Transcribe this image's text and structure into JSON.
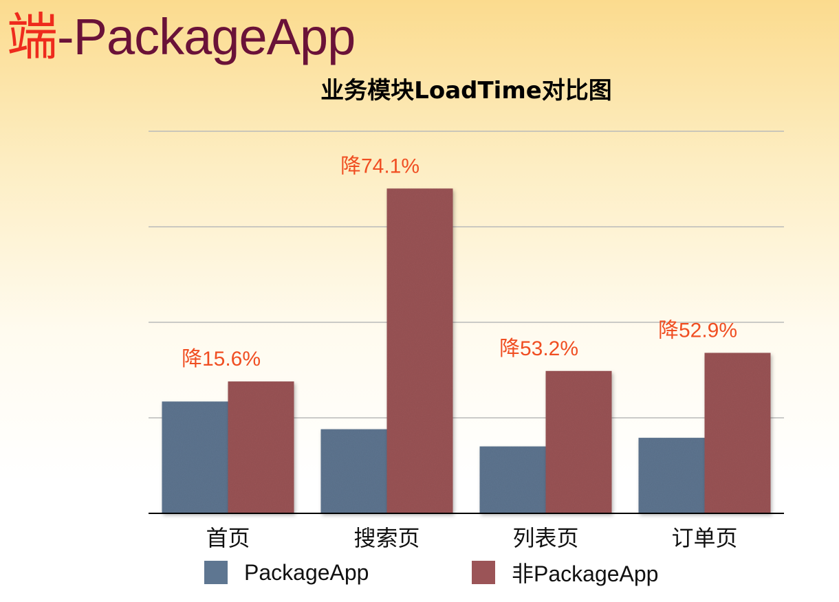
{
  "slide": {
    "title_prefix": "端",
    "title_rest": "-PackageApp"
  },
  "colors": {
    "series_1": "#5e7691",
    "series_2": "#9b5457",
    "annotation": "#f04e22",
    "title_prefix": "#ee2b1d",
    "title_rest": "#6a1238",
    "gridline": "#b9b9b9",
    "axis": "#000000"
  },
  "chart_data": {
    "type": "bar",
    "title": "业务模块LoadTime对比图",
    "categories": [
      "首页",
      "搜索页",
      "列表页",
      "订单页"
    ],
    "series": [
      {
        "name": "PackageApp",
        "values": [
          1.17,
          0.88,
          0.7,
          0.79
        ]
      },
      {
        "name": "非PackageApp",
        "values": [
          1.38,
          3.4,
          1.49,
          1.68
        ]
      }
    ],
    "annotations": [
      "降15.6%",
      "降74.1%",
      "降53.2%",
      "降52.9%"
    ],
    "ylim": [
      0,
      4
    ],
    "y_gridlines": [
      1,
      2,
      3,
      4
    ],
    "y_tick_labels_shown": false,
    "grid": true,
    "legend": "bottom"
  }
}
